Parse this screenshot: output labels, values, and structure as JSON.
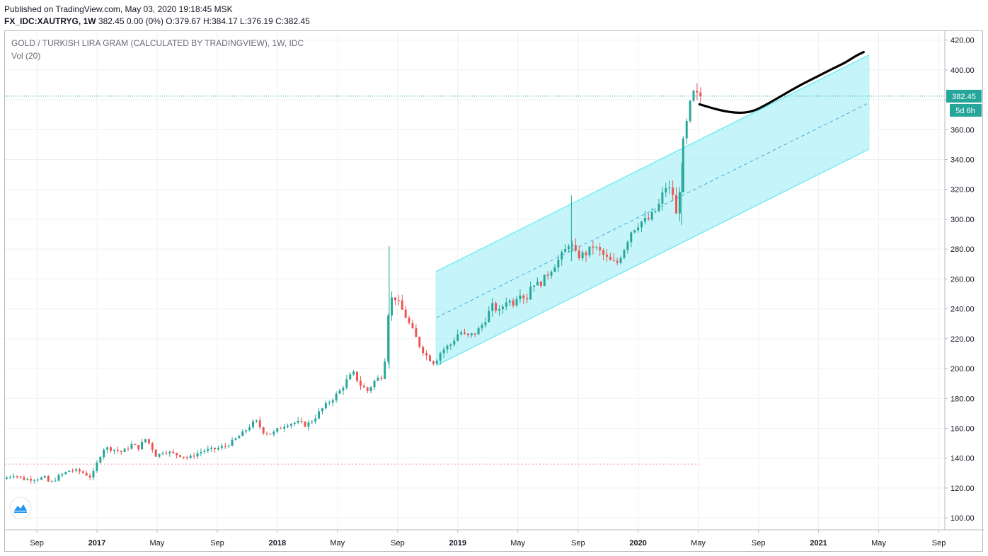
{
  "header": {
    "published": "Published on TradingView.com, May 03, 2020 19:18:45 MSK",
    "symbol_line": "FX_IDC:XAUTRYG, 1W 382.45 0.00 (0%) O:379.67 H:384.17 L:376.19 C:382.45",
    "symbol": "FX_IDC:XAUTRYG, 1W",
    "quote": "382.45 0.00 (0%) O:379.67 H:384.17 L:376.19 C:382.45"
  },
  "legend": {
    "title": "GOLD / TURKISH LIRA GRAM (CALCULATED BY TRADINGVIEW), 1W, IDC",
    "volume": "Vol (20)"
  },
  "price_label": {
    "value": "382.45",
    "countdown": "5d 6h"
  },
  "colors": {
    "up": "#26a69a",
    "down": "#ef5350",
    "channel_fill": "#b2f1f7",
    "channel_line": "#5ce8f2",
    "price_line": "#26a69a",
    "projection": "#000000",
    "grid": "#eef0f3"
  },
  "icons": {
    "logo": "tradingview-logo-icon"
  },
  "chart_data": {
    "type": "candlestick",
    "title": "GOLD / TURKISH LIRA GRAM (CALCULATED BY TRADINGVIEW), 1W, IDC",
    "y_ticks": [
      "100.00",
      "120.00",
      "140.00",
      "160.00",
      "180.00",
      "200.00",
      "220.00",
      "240.00",
      "260.00",
      "280.00",
      "300.00",
      "320.00",
      "340.00",
      "360.00",
      "380.00",
      "400.00",
      "420.00"
    ],
    "ylim": [
      92,
      426
    ],
    "x_ticks": [
      {
        "label": "Sep",
        "t": 2016.667,
        "bold": false
      },
      {
        "label": "2017",
        "t": 2017.0,
        "bold": true
      },
      {
        "label": "May",
        "t": 2017.333,
        "bold": false
      },
      {
        "label": "Sep",
        "t": 2017.667,
        "bold": false
      },
      {
        "label": "2018",
        "t": 2018.0,
        "bold": true
      },
      {
        "label": "May",
        "t": 2018.333,
        "bold": false
      },
      {
        "label": "Sep",
        "t": 2018.667,
        "bold": false
      },
      {
        "label": "2019",
        "t": 2019.0,
        "bold": true
      },
      {
        "label": "May",
        "t": 2019.333,
        "bold": false
      },
      {
        "label": "Sep",
        "t": 2019.667,
        "bold": false
      },
      {
        "label": "2020",
        "t": 2020.0,
        "bold": true
      },
      {
        "label": "May",
        "t": 2020.333,
        "bold": false
      },
      {
        "label": "Sep",
        "t": 2020.667,
        "bold": false
      },
      {
        "label": "2021",
        "t": 2021.0,
        "bold": true
      },
      {
        "label": "May",
        "t": 2021.333,
        "bold": false
      },
      {
        "label": "Sep",
        "t": 2021.667,
        "bold": false
      }
    ],
    "xlim": [
      2016.49,
      2021.7
    ],
    "last_price": 382.45,
    "price_path": [
      [
        2016.49,
        126
      ],
      [
        2016.55,
        129
      ],
      [
        2016.6,
        126
      ],
      [
        2016.66,
        126
      ],
      [
        2016.72,
        127
      ],
      [
        2016.75,
        123
      ],
      [
        2016.8,
        128
      ],
      [
        2016.86,
        132
      ],
      [
        2016.92,
        131
      ],
      [
        2016.98,
        127
      ],
      [
        2017.02,
        140
      ],
      [
        2017.05,
        147
      ],
      [
        2017.1,
        146
      ],
      [
        2017.15,
        144
      ],
      [
        2017.2,
        149
      ],
      [
        2017.24,
        147
      ],
      [
        2017.28,
        153
      ],
      [
        2017.31,
        148
      ],
      [
        2017.34,
        141
      ],
      [
        2017.38,
        145
      ],
      [
        2017.43,
        143
      ],
      [
        2017.47,
        142
      ],
      [
        2017.52,
        140
      ],
      [
        2017.56,
        143
      ],
      [
        2017.6,
        145
      ],
      [
        2017.66,
        146
      ],
      [
        2017.72,
        148
      ],
      [
        2017.76,
        151
      ],
      [
        2017.82,
        157
      ],
      [
        2017.86,
        162
      ],
      [
        2017.89,
        165
      ],
      [
        2017.93,
        158
      ],
      [
        2017.98,
        156
      ],
      [
        2018.02,
        160
      ],
      [
        2018.06,
        163
      ],
      [
        2018.12,
        164
      ],
      [
        2018.17,
        162
      ],
      [
        2018.21,
        166
      ],
      [
        2018.25,
        172
      ],
      [
        2018.3,
        178
      ],
      [
        2018.35,
        184
      ],
      [
        2018.4,
        193
      ],
      [
        2018.43,
        197
      ],
      [
        2018.47,
        189
      ],
      [
        2018.51,
        185
      ],
      [
        2018.55,
        192
      ],
      [
        2018.6,
        196
      ],
      [
        2018.62,
        235
      ],
      [
        2018.65,
        250
      ],
      [
        2018.68,
        244
      ],
      [
        2018.72,
        235
      ],
      [
        2018.76,
        225
      ],
      [
        2018.8,
        215
      ],
      [
        2018.84,
        208
      ],
      [
        2018.88,
        204
      ],
      [
        2018.92,
        212
      ],
      [
        2018.97,
        216
      ],
      [
        2019.02,
        225
      ],
      [
        2019.06,
        221
      ],
      [
        2019.11,
        224
      ],
      [
        2019.15,
        230
      ],
      [
        2019.2,
        242
      ],
      [
        2019.24,
        238
      ],
      [
        2019.28,
        246
      ],
      [
        2019.32,
        244
      ],
      [
        2019.35,
        252
      ],
      [
        2019.39,
        246
      ],
      [
        2019.42,
        258
      ],
      [
        2019.46,
        256
      ],
      [
        2019.5,
        262
      ],
      [
        2019.55,
        270
      ],
      [
        2019.6,
        278
      ],
      [
        2019.63,
        285
      ],
      [
        2019.67,
        275
      ],
      [
        2019.72,
        277
      ],
      [
        2019.76,
        282
      ],
      [
        2019.8,
        278
      ],
      [
        2019.85,
        272
      ],
      [
        2019.89,
        270
      ],
      [
        2019.93,
        280
      ],
      [
        2019.97,
        292
      ],
      [
        2020.02,
        298
      ],
      [
        2020.07,
        300
      ],
      [
        2020.12,
        308
      ],
      [
        2020.16,
        322
      ],
      [
        2020.2,
        318
      ],
      [
        2020.23,
        296
      ],
      [
        2020.25,
        345
      ],
      [
        2020.28,
        365
      ],
      [
        2020.3,
        378
      ],
      [
        2020.32,
        385
      ],
      [
        2020.337,
        382.45
      ]
    ],
    "channel": {
      "upper": [
        [
          2018.88,
          265
        ],
        [
          2021.28,
          410
        ]
      ],
      "middle": [
        [
          2018.88,
          234
        ],
        [
          2021.28,
          378
        ]
      ],
      "lower": [
        [
          2018.88,
          202
        ],
        [
          2021.28,
          347
        ]
      ]
    },
    "projection": [
      [
        2020.34,
        377
      ],
      [
        2020.45,
        373
      ],
      [
        2020.55,
        371
      ],
      [
        2020.63,
        372
      ],
      [
        2020.7,
        376
      ],
      [
        2020.8,
        383
      ],
      [
        2020.9,
        390
      ],
      [
        2021.0,
        396
      ],
      [
        2021.08,
        401
      ],
      [
        2021.15,
        405
      ],
      [
        2021.2,
        409
      ],
      [
        2021.25,
        412
      ]
    ],
    "support_level": 136
  }
}
